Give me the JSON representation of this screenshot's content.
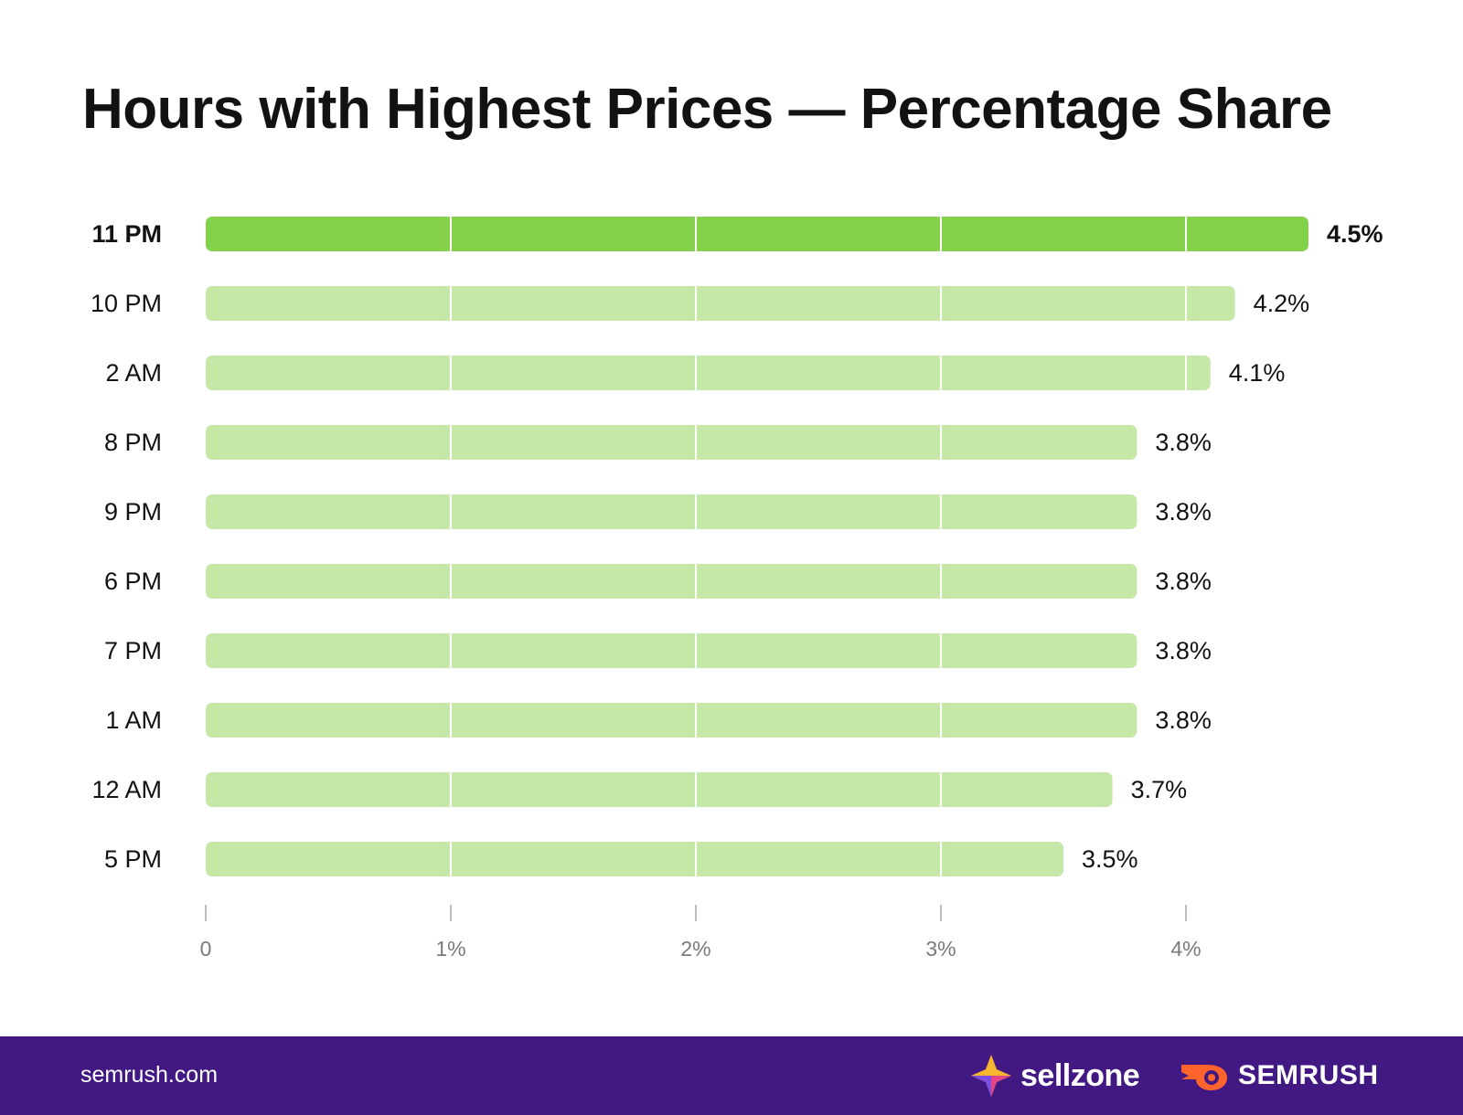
{
  "chart_data": {
    "type": "bar",
    "orientation": "horizontal",
    "title": "Hours with Highest Prices — Percentage Share",
    "categories": [
      "11 PM",
      "10 PM",
      "2 AM",
      "8 PM",
      "9 PM",
      "6 PM",
      "7 PM",
      "1 AM",
      "12 AM",
      "5 PM"
    ],
    "values": [
      4.5,
      4.2,
      4.1,
      3.8,
      3.8,
      3.8,
      3.8,
      3.8,
      3.7,
      3.5
    ],
    "value_labels": [
      "4.5%",
      "4.2%",
      "4.1%",
      "3.8%",
      "3.8%",
      "3.8%",
      "3.8%",
      "3.8%",
      "3.7%",
      "3.5%"
    ],
    "highlight_index": 0,
    "xlim": [
      0,
      4.5
    ],
    "ticks": [
      0,
      1,
      2,
      3,
      4
    ],
    "tick_labels": [
      "0",
      "1%",
      "2%",
      "3%",
      "4%"
    ],
    "xlabel": "",
    "ylabel": "",
    "grid": true,
    "colors": {
      "highlight": "#84d14a",
      "bar": "#c5e8a6",
      "grid": "#ffffff",
      "tick": "#bdbdbd"
    }
  },
  "footer": {
    "site": "semrush.com",
    "brand1": "sellzone",
    "brand2": "SEMRUSH",
    "background": "#421983"
  }
}
